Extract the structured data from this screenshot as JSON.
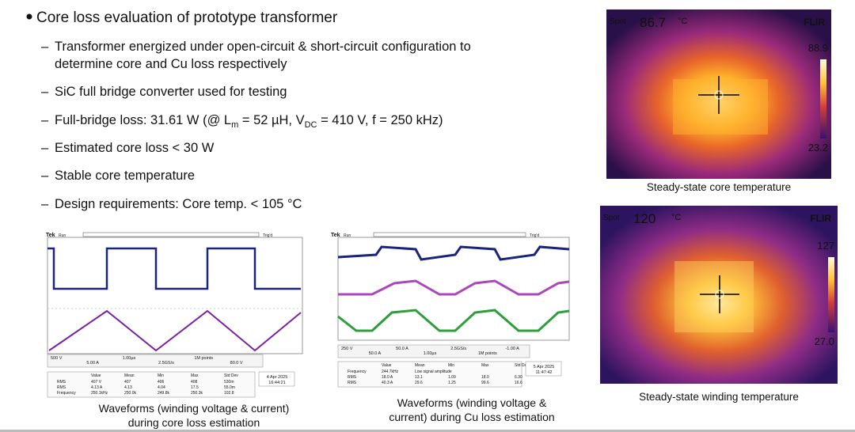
{
  "bullet": {
    "title": "Core loss evaluation of prototype transformer",
    "items": [
      {
        "lines": [
          "Transformer energized under open-circuit & short-circuit configuration to",
          "determine core and Cu loss respectively"
        ]
      },
      {
        "lines": [
          "SiC full bridge converter used for testing"
        ]
      },
      {
        "parts": [
          "Full-bridge loss: 31.61 W (@ L",
          "m",
          " = 52 µH, V",
          "DC",
          " = 410 V, f = 250 kHz)"
        ]
      },
      {
        "lines": [
          "Estimated core loss < 30 W"
        ]
      },
      {
        "lines": [
          "Stable core temperature"
        ]
      },
      {
        "lines": [
          "Design requirements: Core temp. < 105 °C"
        ]
      }
    ]
  },
  "thermal": [
    {
      "spot_label": "Spot",
      "spot": "86.7",
      "unit": "°C",
      "brand": "FLIR",
      "max": "88.9",
      "min": "23.2",
      "caption": "Steady-state core temperature"
    },
    {
      "spot_label": "Spot",
      "spot": "120",
      "unit": "°C",
      "brand": "FLIR",
      "max": "127",
      "min": "27.0",
      "caption": "Steady-state winding temperature"
    }
  ],
  "scopes": [
    {
      "brand": "Tek",
      "status": "Run",
      "trigger": "Trig'd",
      "settings": [
        "500 V",
        "5.00 A",
        "1.00µs",
        "2.5GS/s",
        "1M points",
        "80.0 V"
      ],
      "table": {
        "header": [
          "Value",
          "Mean",
          "Min",
          "Max",
          "Std Dev"
        ],
        "rows": [
          [
            "RMS",
            "407 V",
            "407",
            "406",
            "408",
            "530m"
          ],
          [
            "RMS",
            "4.13 A",
            "4.13",
            "4.04",
            "17.5",
            "55.0m"
          ],
          [
            "Frequency",
            "250.1kHz",
            "250.0k",
            "249.8k",
            "250.3k",
            "102.8"
          ]
        ]
      },
      "date": "4 Apr 2025",
      "time": "16:44:21",
      "caption": [
        "Waveforms (winding voltage & current)",
        "during core loss estimation"
      ]
    },
    {
      "brand": "Tek",
      "status": "Run",
      "trigger": "Trig'd",
      "settings": [
        "250 V",
        "50.0 A",
        "50.0 A",
        "1.00µs",
        "2.5GS/s",
        "1M points",
        "-1.00 A"
      ],
      "table": {
        "header": [
          "Value",
          "Mean",
          "Min",
          "Max",
          "Std Dev"
        ],
        "rows": [
          [
            "Frequency",
            "244.7kHz",
            "Low signal amplitude"
          ],
          [
            "RMS",
            "18.0 A",
            "13.1",
            "1.09",
            "18.0",
            "6.30"
          ],
          [
            "RMS",
            "40.3 A",
            "29.6",
            "1.25",
            "99.6",
            "16.6"
          ]
        ]
      },
      "date": "5 Apr 2025",
      "time": "11:47:42",
      "caption": [
        "Waveforms (winding voltage &",
        "current) during Cu loss estimation"
      ]
    }
  ]
}
